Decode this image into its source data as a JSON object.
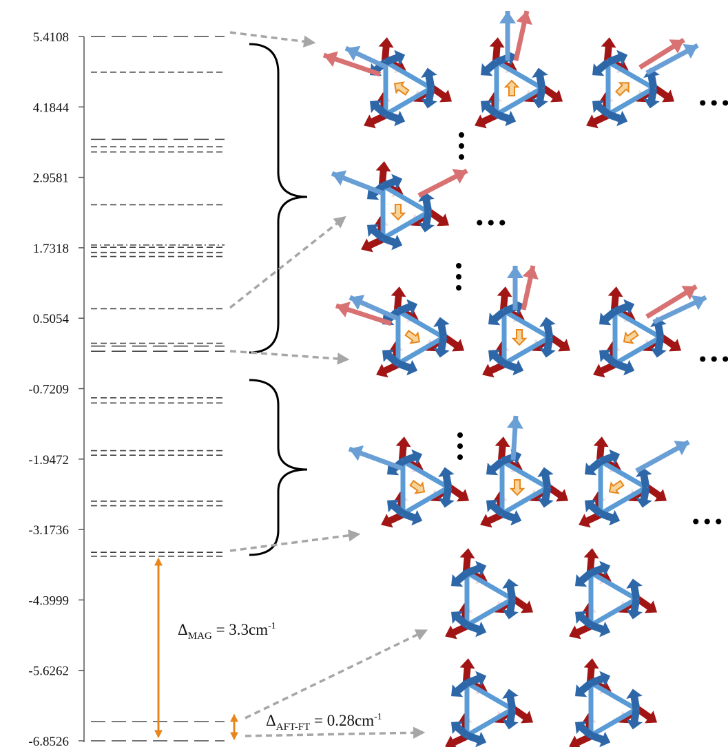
{
  "energy_axis": {
    "tick_labels": [
      "5.4108",
      "4.1844",
      "2.9581",
      "1.7318",
      "0.5054",
      "-0.7209",
      "-1.9472",
      "-3.1736",
      "-4.3999",
      "-5.6262",
      "-6.8526"
    ],
    "ticks": [
      5.4108,
      4.1844,
      2.9581,
      1.7318,
      0.5054,
      -0.7209,
      -1.9472,
      -3.1736,
      -4.3999,
      -5.6262,
      -6.8526
    ],
    "range": [
      -6.8526,
      5.4108
    ]
  },
  "levels": [
    {
      "energy": 5.4108,
      "style": "long"
    },
    {
      "energy": 4.79,
      "style": "short"
    },
    {
      "energy": 3.62,
      "style": "long"
    },
    {
      "energy": 3.49,
      "style": "short"
    },
    {
      "energy": 3.4,
      "style": "short"
    },
    {
      "energy": 2.48,
      "style": "short"
    },
    {
      "energy": 1.78,
      "style": "dashdot"
    },
    {
      "energy": 1.74,
      "style": "short"
    },
    {
      "energy": 1.65,
      "style": "short"
    },
    {
      "energy": 1.58,
      "style": "short"
    },
    {
      "energy": 0.67,
      "style": "short"
    },
    {
      "energy": 0.07,
      "style": "short"
    },
    {
      "energy": 0.02,
      "style": "long"
    },
    {
      "energy": -0.07,
      "style": "long"
    },
    {
      "energy": -0.88,
      "style": "short"
    },
    {
      "energy": -0.97,
      "style": "short"
    },
    {
      "energy": -1.8,
      "style": "short"
    },
    {
      "energy": -1.88,
      "style": "short"
    },
    {
      "energy": -2.68,
      "style": "short"
    },
    {
      "energy": -2.76,
      "style": "short"
    },
    {
      "energy": -3.57,
      "style": "short"
    },
    {
      "energy": -3.64,
      "style": "short"
    },
    {
      "energy": -6.52,
      "style": "long"
    },
    {
      "energy": -6.8526,
      "style": "long"
    }
  ],
  "gaps": {
    "mag": {
      "label": "Δ",
      "sub": "MAG",
      "text": " = 3.3cm",
      "sup": "-1",
      "value_cm": 3.3
    },
    "aft_ft": {
      "label": "Δ",
      "sub": "AFT-FT",
      "text": " = 0.28cm",
      "sup": "-1",
      "value_cm": 0.28
    }
  },
  "ellipsis": "•••",
  "colors": {
    "triangle": "#5b9bd5",
    "blue_arrow": "#2e67a8",
    "red_arrow": "#a11515",
    "light_blue_arrow": "#6a9fd6",
    "light_red_arrow": "#d87272",
    "orange": "#e8861c",
    "orange_fill": "#f7d49a",
    "gray_arrow": "#a6a6a6"
  }
}
